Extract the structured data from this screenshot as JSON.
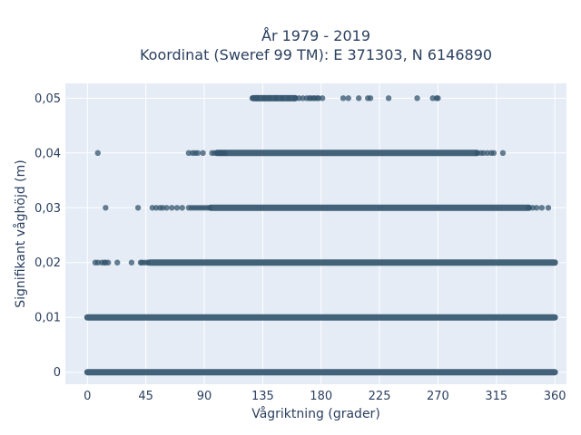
{
  "chart_data": {
    "type": "scatter",
    "title": "År 1979 - 2019",
    "subtitle": "Koordinat (Sweref 99 TM): E 371303, N 6146890",
    "xlabel": "Vågriktning (grader)",
    "ylabel": "Signifikant våghöjd (m)",
    "xlim": [
      -17,
      369
    ],
    "ylim": [
      -0.0022,
      0.0527
    ],
    "x_ticks": [
      0,
      45,
      90,
      135,
      180,
      225,
      270,
      315,
      360
    ],
    "y_ticks": [
      0,
      0.01,
      0.02,
      0.03,
      0.04,
      0.05
    ],
    "y_tick_labels": [
      "0",
      "0,01",
      "0,02",
      "0,03",
      "0,04",
      "0,05"
    ],
    "grid": true,
    "background": "#e5ecf6",
    "marker_color": "#34566e",
    "series": [
      {
        "y": 0.05,
        "dense_ranges": [
          [
            128,
            160
          ]
        ],
        "x": [
          127,
          131,
          136,
          140,
          145,
          150,
          155,
          160,
          163,
          166,
          169,
          171,
          172,
          174,
          175,
          177,
          178,
          181,
          197,
          201,
          209,
          216,
          218,
          232,
          254,
          266,
          269,
          270
        ]
      },
      {
        "y": 0.04,
        "dense_ranges": [
          [
            100,
            300
          ]
        ],
        "x": [
          8,
          78,
          81,
          83,
          85,
          89,
          96,
          98,
          100,
          102,
          104,
          106,
          300,
          303,
          305,
          308,
          311,
          313,
          320
        ]
      },
      {
        "y": 0.03,
        "dense_ranges": [
          [
            95,
            340
          ]
        ],
        "x": [
          14,
          39,
          50,
          53,
          56,
          58,
          61,
          65,
          69,
          73,
          78,
          80,
          82,
          84,
          86,
          88,
          90,
          92,
          94,
          340,
          343,
          346,
          350,
          355
        ]
      },
      {
        "y": 0.02,
        "dense_ranges": [
          [
            48,
            360
          ]
        ],
        "x": [
          6,
          8,
          11,
          13,
          14,
          16,
          23,
          34,
          41,
          42,
          44,
          46
        ]
      },
      {
        "y": 0.01,
        "dense_ranges": [
          [
            0,
            360
          ]
        ],
        "x": []
      },
      {
        "y": 0,
        "dense_ranges": [
          [
            0,
            360
          ]
        ],
        "x": []
      }
    ]
  }
}
